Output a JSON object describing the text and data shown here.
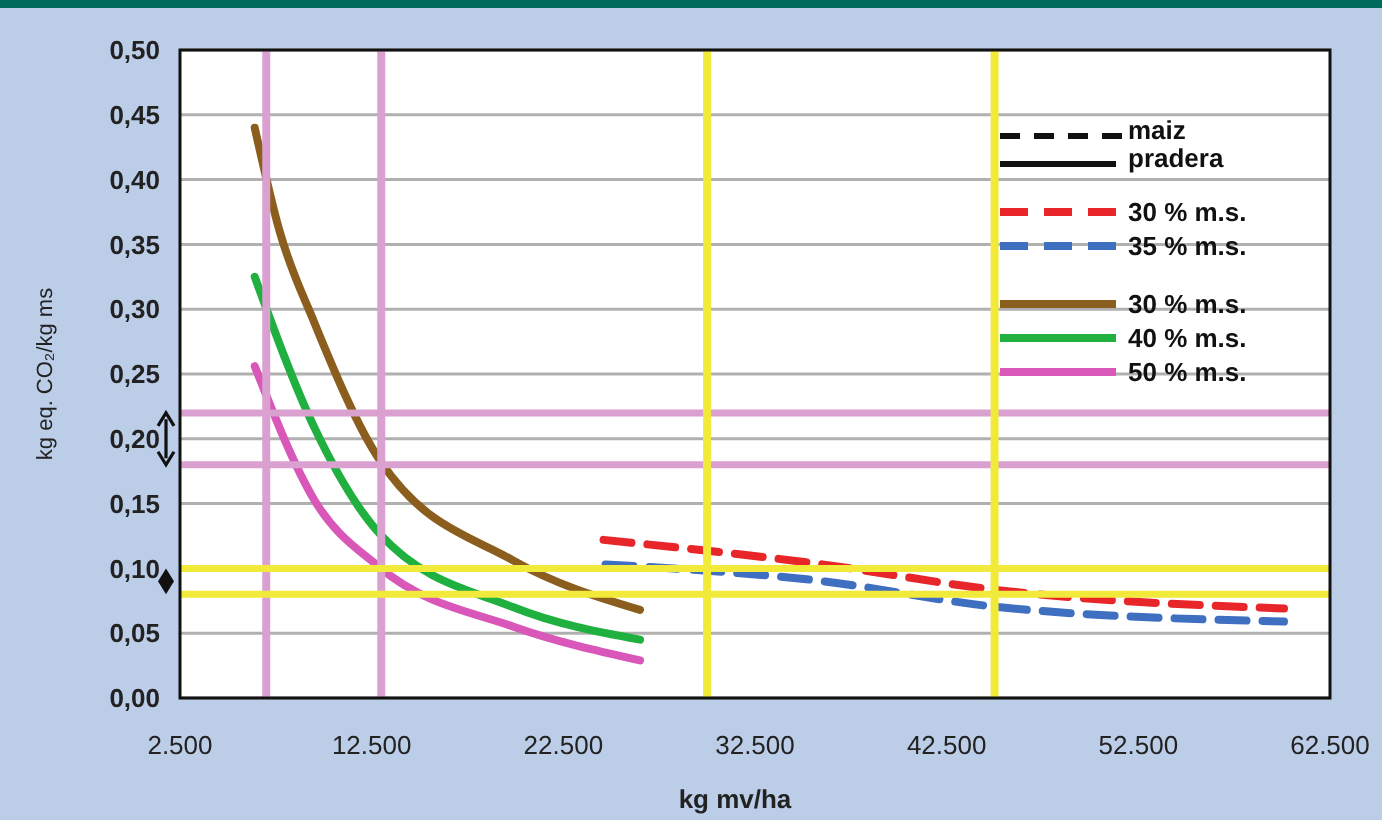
{
  "chart_data": {
    "type": "line",
    "xlabel": "kg mv/ha",
    "ylabel": "kg eq. CO₂/kg ms",
    "xlim": [
      2500,
      62500
    ],
    "xticks": [
      {
        "value": 2500,
        "label": "2.500"
      },
      {
        "value": 12500,
        "label": "12.500"
      },
      {
        "value": 22500,
        "label": "22.500"
      },
      {
        "value": 32500,
        "label": "32.500"
      },
      {
        "value": 42500,
        "label": "42.500"
      },
      {
        "value": 52500,
        "label": "52.500"
      },
      {
        "value": 62500,
        "label": "62.500"
      }
    ],
    "ylim": [
      0,
      0.5
    ],
    "yticks": [
      {
        "value": 0,
        "label": "0,00"
      },
      {
        "value": 0.05,
        "label": "0,05"
      },
      {
        "value": 0.1,
        "label": "0,10"
      },
      {
        "value": 0.15,
        "label": "0,15"
      },
      {
        "value": 0.2,
        "label": "0,20"
      },
      {
        "value": 0.25,
        "label": "0,25"
      },
      {
        "value": 0.3,
        "label": "0,30"
      },
      {
        "value": 0.35,
        "label": "0,35"
      },
      {
        "value": 0.4,
        "label": "0,40"
      },
      {
        "value": 0.45,
        "label": "0,45"
      },
      {
        "value": 0.5,
        "label": "0,50"
      }
    ],
    "grid": "y",
    "legend": "right",
    "marker": "none",
    "annotations": [
      "maiz",
      "pradera"
    ],
    "series": [
      {
        "name": "30 % m.s.",
        "color": "#e8262a",
        "line_style": "dashed",
        "x": [
          24600,
          35550,
          45300,
          60100
        ],
        "values": [
          0.122,
          0.104,
          0.083,
          0.069
        ]
      },
      {
        "name": "35 % m.s.",
        "color": "#3f6fc0",
        "line_style": "dashed",
        "x": [
          24700,
          35550,
          45300,
          60100
        ],
        "values": [
          0.103,
          0.091,
          0.07,
          0.059
        ]
      },
      {
        "name": "30 % m.s.",
        "color": "#8b5e1e",
        "line_style": "solid",
        "x": [
          6400,
          7700,
          9500,
          12900,
          19900,
          26500
        ],
        "values": [
          0.44,
          0.36,
          0.29,
          0.184,
          0.106,
          0.068
        ]
      },
      {
        "name": "40 % m.s.",
        "color": "#1fb040",
        "line_style": "solid",
        "x": [
          6400,
          9500,
          12900,
          19900,
          26500
        ],
        "values": [
          0.325,
          0.209,
          0.127,
          0.07,
          0.045
        ]
      },
      {
        "name": "50 % m.s.",
        "color": "#d857b8",
        "line_style": "solid",
        "x": [
          6400,
          9500,
          12900,
          19900,
          26500
        ],
        "values": [
          0.256,
          0.153,
          0.101,
          0.055,
          0.029
        ]
      }
    ],
    "ref_lines": [
      {
        "axis": "x",
        "value": 7000,
        "color": "#d9a0d0"
      },
      {
        "axis": "x",
        "value": 13000,
        "color": "#d9a0d0"
      },
      {
        "axis": "y",
        "value": 0.22,
        "color": "#d9a0d0"
      },
      {
        "axis": "y",
        "value": 0.18,
        "color": "#d9a0d0"
      },
      {
        "axis": "x",
        "value": 30000,
        "color": "#f2ea3a"
      },
      {
        "axis": "x",
        "value": 45000,
        "color": "#f2ea3a"
      },
      {
        "axis": "y",
        "value": 0.1,
        "color": "#f2ea3a"
      },
      {
        "axis": "y",
        "value": 0.08,
        "color": "#f2ea3a"
      }
    ]
  }
}
